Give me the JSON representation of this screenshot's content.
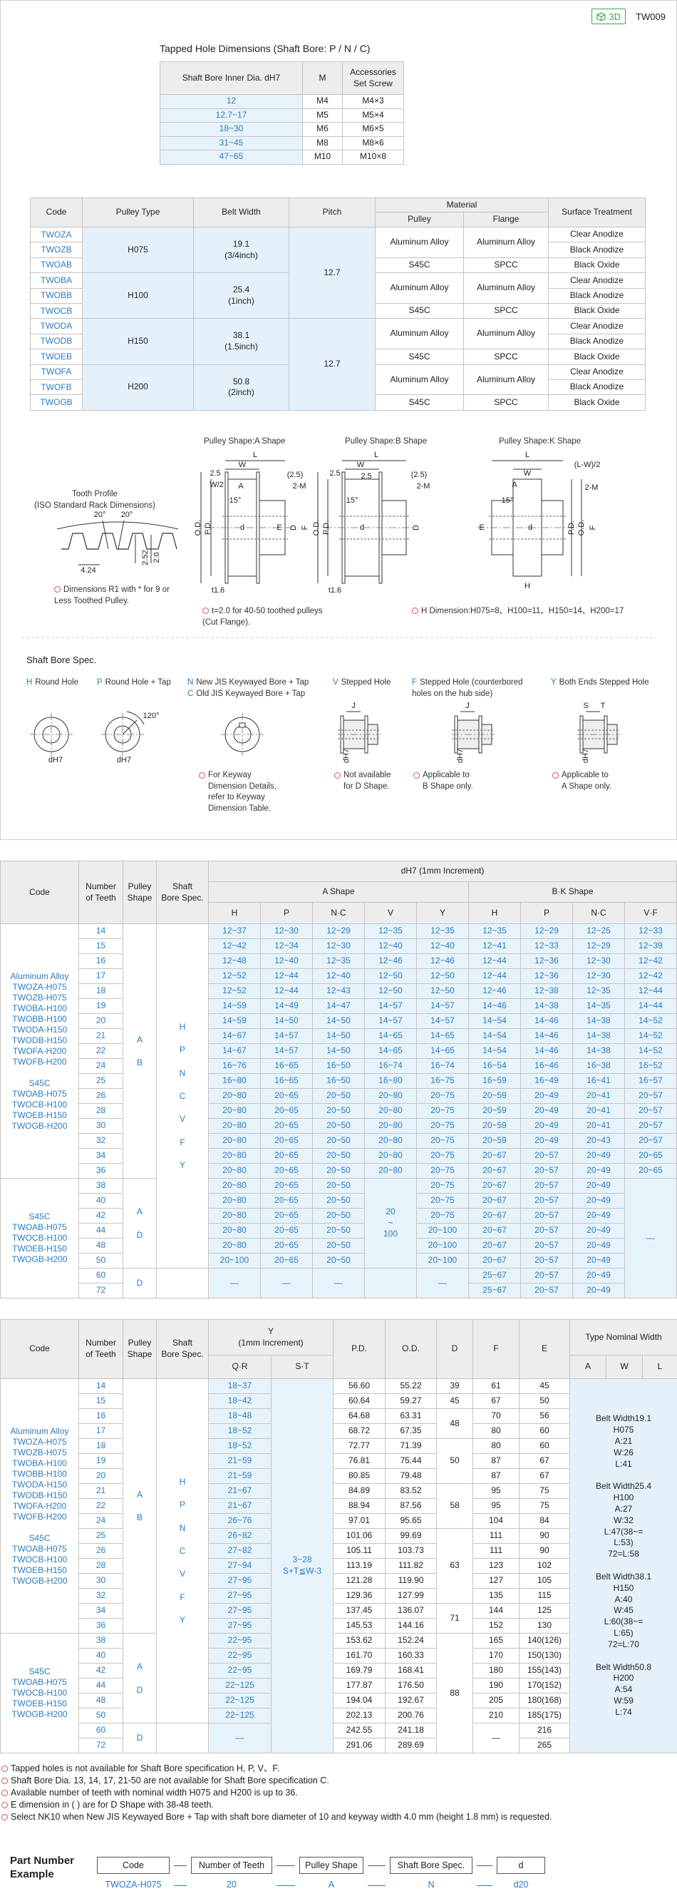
{
  "header": {
    "badge": "3D",
    "code": "TW009"
  },
  "tapped_hole": {
    "title": "Tapped Hole Dimensions (Shaft Bore: P / N / C)",
    "header": [
      [
        "Shaft Bore Inner Dia. dH7",
        "M",
        "Accessories\nSet Screw"
      ]
    ],
    "rows": [
      [
        "12",
        "M4",
        "M4×3"
      ],
      [
        "12.7~17",
        "M5",
        "M5×4"
      ],
      [
        "18~30",
        "M6",
        "M6×5"
      ],
      [
        "31~45",
        "M8",
        "M8×6"
      ],
      [
        "47~65",
        "M10",
        "M10×8"
      ]
    ]
  },
  "material": {
    "header": [
      [
        "Code",
        "Pulley Type",
        "Belt Width",
        "Pitch",
        "Material",
        "Surface Treatment"
      ],
      [
        "Pulley",
        "Flange"
      ]
    ],
    "rows": [
      [
        "TWOZA",
        "H075",
        "19.1\n(3/4inch)",
        "12.7",
        "Aluminum Alloy",
        "Aluminum Alloy",
        "Clear Anodize"
      ],
      [
        "TWOZB",
        "Black Anodize"
      ],
      [
        "TWOAB",
        "S45C",
        "SPCC",
        "Black Oxide"
      ],
      [
        "TWOBA",
        "H100",
        "25.4\n(1inch)",
        "Aluminum Alloy",
        "Aluminum Alloy",
        "Clear Anodize"
      ],
      [
        "TWOBB",
        "Black Anodize"
      ],
      [
        "TWOCB",
        "S45C",
        "SPCC",
        "Black Oxide"
      ],
      [
        "TWODA",
        "H150",
        "38.1\n(1.5inch)",
        "12.7",
        "Aluminum Alloy",
        "Aluminum Alloy",
        "Clear Anodize"
      ],
      [
        "TWODB",
        "Black Anodize"
      ],
      [
        "TWOEB",
        "S45C",
        "SPCC",
        "Black Oxide"
      ],
      [
        "TWOFA",
        "H200",
        "50.8\n(2inch)",
        "Aluminum Alloy",
        "Aluminum Alloy",
        "Clear Anodize"
      ],
      [
        "TWOFB",
        "Black Anodize"
      ],
      [
        "TWOGB",
        "S45C",
        "SPCC",
        "Black Oxide"
      ]
    ]
  },
  "drawings": {
    "tooth_profile": {
      "title": "Tooth Profile\n(ISO Standard Rack Dimensions)",
      "labels": [
        "20°",
        "20°",
        "4.24",
        "2.52",
        "2.0"
      ],
      "note": "Dimensions R1 with * for 9 or\nLess Toothed Pulley."
    },
    "shapes": [
      {
        "title": "Pulley Shape:A Shape",
        "labels": [
          "W",
          "L",
          "2.5",
          "W/2",
          "A",
          "(2.5)",
          "2-M",
          "P.D.",
          "O.D.",
          "E",
          "F",
          "D",
          "d",
          "15°",
          "t1.6"
        ],
        "note": "t=2.0 for 40-50 toothed pulleys\n(Cut Flange)."
      },
      {
        "title": "Pulley Shape:B Shape",
        "labels": [
          "L",
          "W",
          "2.5",
          "2.5",
          "(2.5)",
          "2-M",
          "P.D.",
          "O.D.",
          "D",
          "d",
          "15°",
          "t1.6"
        ]
      },
      {
        "title": "Pulley Shape:K Shape",
        "labels": [
          "(L-W)/2",
          "L",
          "W",
          "A",
          "2-M",
          "E",
          "P.D.",
          "O.D.",
          "F",
          "d",
          "H",
          "15°"
        ],
        "note": "H Dimension:H075=8、H100=11、H150=14、H200=17"
      }
    ]
  },
  "shaft_bore_spec": {
    "title": "Shaft Bore Spec.",
    "items": [
      {
        "codes": [
          "H"
        ],
        "names": [
          "Round Hole"
        ],
        "labels": [
          "dH7"
        ]
      },
      {
        "codes": [
          "P"
        ],
        "names": [
          "Round Hole + Tap"
        ],
        "labels": [
          "dH7",
          "120°"
        ]
      },
      {
        "codes": [
          "N",
          "C"
        ],
        "names": [
          "New JIS Keywayed Bore + Tap",
          "Old JIS Keywayed Bore + Tap"
        ],
        "note": "For Keyway\nDimension Details,\nrefer to Keyway\nDimension Table."
      },
      {
        "codes": [
          "V"
        ],
        "names": [
          "Stepped Hole"
        ],
        "labels": [
          "J",
          "dH7"
        ],
        "note": "Not available\nfor D Shape."
      },
      {
        "codes": [
          "F"
        ],
        "names": [
          "Stepped Hole (counterbored\nholes on the hub side)"
        ],
        "labels": [
          "J",
          "dH7"
        ],
        "note": "Applicable to\nB Shape only."
      },
      {
        "codes": [
          "Y"
        ],
        "names": [
          "Both Ends Stepped Hole"
        ],
        "labels": [
          "S",
          "T",
          "dH7"
        ],
        "note": "Applicable to\nA Shape only."
      }
    ]
  },
  "dimension_table": {
    "header": [
      [
        "Code",
        "Number\nof Teeth",
        "Pulley\nShape",
        "Shaft\nBore Spec.",
        "dH7 (1mm Increment)"
      ],
      [
        "A Shape",
        "B·K Shape"
      ],
      [
        "H",
        "P",
        "N·C",
        "V",
        "Y",
        "H",
        "P",
        "N·C",
        "V·F"
      ]
    ],
    "rows": [
      [
        "Aluminum Alloy\nTWOZA-H075\nTWOZB-H075\nTWOBA-H100\nTWOBB-H100\nTWODA-H150\nTWODB-H150\nTWOFA-H200\nTWOFB-H200\n\nS45C\nTWOAB-H075\nTWOCB-H100\nTWOEB-H150\nTWOGB-H200",
        "14",
        "A\n\nB",
        "H\n\nP\n\nN\n\nC\n\nV\n\nF\n\nY",
        "12~37",
        "12~30",
        "12~29",
        "12~35",
        "12~35",
        "12~35",
        "12~29",
        "12~25",
        "12~33"
      ],
      [
        "15",
        "12~42",
        "12~34",
        "12~30",
        "12~40",
        "12~40",
        "12~41",
        "12~33",
        "12~29",
        "12~39"
      ],
      [
        "16",
        "12~48",
        "12~40",
        "12~35",
        "12~46",
        "12~46",
        "12~44",
        "12~36",
        "12~30",
        "12~42"
      ],
      [
        "17",
        "12~52",
        "12~44",
        "12~40",
        "12~50",
        "12~50",
        "12~44",
        "12~36",
        "12~30",
        "12~42"
      ],
      [
        "18",
        "12~52",
        "12~44",
        "12~43",
        "12~50",
        "12~50",
        "12~46",
        "12~38",
        "12~35",
        "12~44"
      ],
      [
        "19",
        "14~59",
        "14~49",
        "14~47",
        "14~57",
        "14~57",
        "14~46",
        "14~38",
        "14~35",
        "14~44"
      ],
      [
        "20",
        "14~59",
        "14~50",
        "14~50",
        "14~57",
        "14~57",
        "14~54",
        "14~46",
        "14~38",
        "14~52"
      ],
      [
        "21",
        "14~67",
        "14~57",
        "14~50",
        "14~65",
        "14~65",
        "14~54",
        "14~46",
        "14~38",
        "14~52"
      ],
      [
        "22",
        "14~67",
        "14~57",
        "14~50",
        "14~65",
        "14~65",
        "14~54",
        "14~46",
        "14~38",
        "14~52"
      ],
      [
        "24",
        "16~76",
        "16~65",
        "16~50",
        "16~74",
        "16~74",
        "16~54",
        "16~46",
        "16~38",
        "16~52"
      ],
      [
        "25",
        "16~80",
        "16~65",
        "16~50",
        "16~80",
        "16~75",
        "16~59",
        "16~49",
        "16~41",
        "16~57"
      ],
      [
        "26",
        "20~80",
        "20~65",
        "20~50",
        "20~80",
        "20~75",
        "20~59",
        "20~49",
        "20~41",
        "20~57"
      ],
      [
        "28",
        "20~80",
        "20~65",
        "20~50",
        "20~80",
        "20~75",
        "20~59",
        "20~49",
        "20~41",
        "20~57"
      ],
      [
        "30",
        "20~80",
        "20~65",
        "20~50",
        "20~80",
        "20~75",
        "20~59",
        "20~49",
        "20~41",
        "20~57"
      ],
      [
        "32",
        "20~80",
        "20~65",
        "20~50",
        "20~80",
        "20~75",
        "20~59",
        "20~49",
        "20~43",
        "20~57"
      ],
      [
        "34",
        "20~80",
        "20~65",
        "20~50",
        "20~80",
        "20~75",
        "20~67",
        "20~57",
        "20~49",
        "20~65"
      ],
      [
        "36",
        "20~80",
        "20~65",
        "20~50",
        "20~80",
        "20~75",
        "20~67",
        "20~57",
        "20~49",
        "20~65"
      ],
      [
        "S45C\nTWOAB-H075\nTWOCB-H100\nTWOEB-H150\nTWOGB-H200",
        "38",
        "A\n\nD",
        "20~80",
        "20~65",
        "20~50",
        "20\n~\n100",
        "20~75",
        "20~67",
        "20~57",
        "20~49",
        "—"
      ],
      [
        "40",
        "20~80",
        "20~65",
        "20~50",
        "20~75",
        "20~67",
        "20~57",
        "20~49"
      ],
      [
        "42",
        "20~80",
        "20~65",
        "20~50",
        "20~75",
        "20~67",
        "20~57",
        "20~49"
      ],
      [
        "44",
        "20~80",
        "20~65",
        "20~50",
        "20~100",
        "20~67",
        "20~57",
        "20~49"
      ],
      [
        "48",
        "20~80",
        "20~65",
        "20~50",
        "20~100",
        "20~67",
        "20~57",
        "20~49"
      ],
      [
        "50",
        "20~100",
        "20~65",
        "20~50",
        "20~100",
        "20~67",
        "20~57",
        "20~49"
      ],
      [
        "60",
        "D",
        null,
        "—",
        "—",
        "—",
        null,
        "—",
        "25~67",
        "20~57",
        "20~49"
      ],
      [
        "72",
        "25~67",
        "20~57",
        "20~49"
      ]
    ]
  },
  "dimension_table_2": {
    "header": [
      [
        "Code",
        "Number\nof Teeth",
        "Pulley\nShape",
        "Shaft\nBore Spec.",
        "Y\n(1mm Increment)",
        "P.D.",
        "O.D.",
        "D",
        "F",
        "E",
        "Type Nominal Width"
      ],
      [
        "Q·R",
        "S·T",
        "A",
        "W",
        "L"
      ]
    ],
    "rows": [
      [
        "Aluminum Alloy\nTWOZA-H075\nTWOZB-H075\nTWOBA-H100\nTWOBB-H100\nTWODA-H150\nTWODB-H150\nTWOFA-H200\nTWOFB-H200\n\nS45C\nTWOAB-H075\nTWOCB-H100\nTWOEB-H150\nTWOGB-H200",
        "14",
        "A\n\nB",
        "H\n\nP\n\nN\n\nC\n\nV\n\nF\n\nY",
        "18~37",
        "3~28\nS+T≦W-3",
        "56.60",
        "55.22",
        "39",
        "61",
        "45",
        "Belt Width19.1\nH075\nA:21\nW:26\nL:41\n\nBelt Width25.4\nH100\nA:27\nW:32\nL:47(38~=\nL:53)\n72=L:58\n\nBelt Width38.1\nH150\nA:40\nW:45\nL:60(38~=\nL:65)\n72=L:70\n\nBelt Width50.8\nH200\nA:54\nW:59\nL:74"
      ],
      [
        "15",
        "18~42",
        "60.64",
        "59.27",
        "45",
        "67",
        "50"
      ],
      [
        "16",
        "18~48",
        "64.68",
        "63.31",
        "48",
        "70",
        "56"
      ],
      [
        "17",
        "18~52",
        "68.72",
        "67.35",
        "80",
        "60"
      ],
      [
        "18",
        "18~52",
        "72.77",
        "71.39",
        "50",
        "80",
        "60"
      ],
      [
        "19",
        "21~59",
        "76.81",
        "75.44",
        "87",
        "67"
      ],
      [
        "20",
        "21~59",
        "80.85",
        "79.48",
        "87",
        "67"
      ],
      [
        "21",
        "21~67",
        "84.89",
        "83.52",
        "58",
        "95",
        "75"
      ],
      [
        "22",
        "21~67",
        "88.94",
        "87.56",
        "95",
        "75"
      ],
      [
        "24",
        "26~76",
        "97.01",
        "95.65",
        "104",
        "84"
      ],
      [
        "25",
        "26~82",
        "101.06",
        "99.69",
        "63",
        "111",
        "90"
      ],
      [
        "26",
        "27~82",
        "105.11",
        "103.73",
        "111",
        "90"
      ],
      [
        "28",
        "27~94",
        "113.19",
        "111.82",
        "123",
        "102"
      ],
      [
        "30",
        "27~95",
        "121.28",
        "119.90",
        "127",
        "105"
      ],
      [
        "32",
        "27~95",
        "129.36",
        "127.99",
        "135",
        "115"
      ],
      [
        "34",
        "27~95",
        "137.45",
        "136.07",
        "71",
        "144",
        "125"
      ],
      [
        "36",
        "27~95",
        "145.53",
        "144.16",
        "152",
        "130"
      ],
      [
        "S45C\nTWOAB-H075\nTWOCB-H100\nTWOEB-H150\nTWOGB-H200",
        "38",
        "A\n\nD",
        "22~95",
        "153.62",
        "152.24",
        "88",
        "165",
        "140(126)"
      ],
      [
        "40",
        "22~95",
        "161.70",
        "160.33",
        "170",
        "150(130)"
      ],
      [
        "42",
        "22~95",
        "169.79",
        "168.41",
        "180",
        "155(143)"
      ],
      [
        "44",
        "22~125",
        "177.87",
        "176.50",
        "190",
        "170(152)"
      ],
      [
        "48",
        "22~125",
        "194.04",
        "192.67",
        "205",
        "180(168)"
      ],
      [
        "50",
        "22~125",
        "202.13",
        "200.76",
        "210",
        "185(175)"
      ],
      [
        "60",
        "D",
        null,
        "—",
        "242.55",
        "241.18",
        "—",
        "216"
      ],
      [
        "72",
        "291.06",
        "289.69",
        "265"
      ]
    ]
  },
  "notes": [
    "Tapped holes is not available for Shaft Bore specification H, P, V、F.",
    "Shaft Bore Dia. 13, 14, 17, 21-50 are not available for Shaft Bore specification C.",
    "Available number of teeth with nominal width H075 and H200 is up to 36.",
    "E dimension in ( ) are for D Shape with 38-48 teeth.",
    "Select NK10 when New JIS Keywayed Bore + Tap with shaft bore diameter of 10 and keyway width 4.0 mm (height 1.8 mm) is requested."
  ],
  "part_number": {
    "label": "Part Number\nExample",
    "fields": [
      "Code",
      "Number of Teeth",
      "Pulley Shape",
      "Shaft Bore Spec.",
      "d"
    ],
    "values": [
      "TWOZA-H075",
      "20",
      "A",
      "N",
      "d20"
    ]
  }
}
